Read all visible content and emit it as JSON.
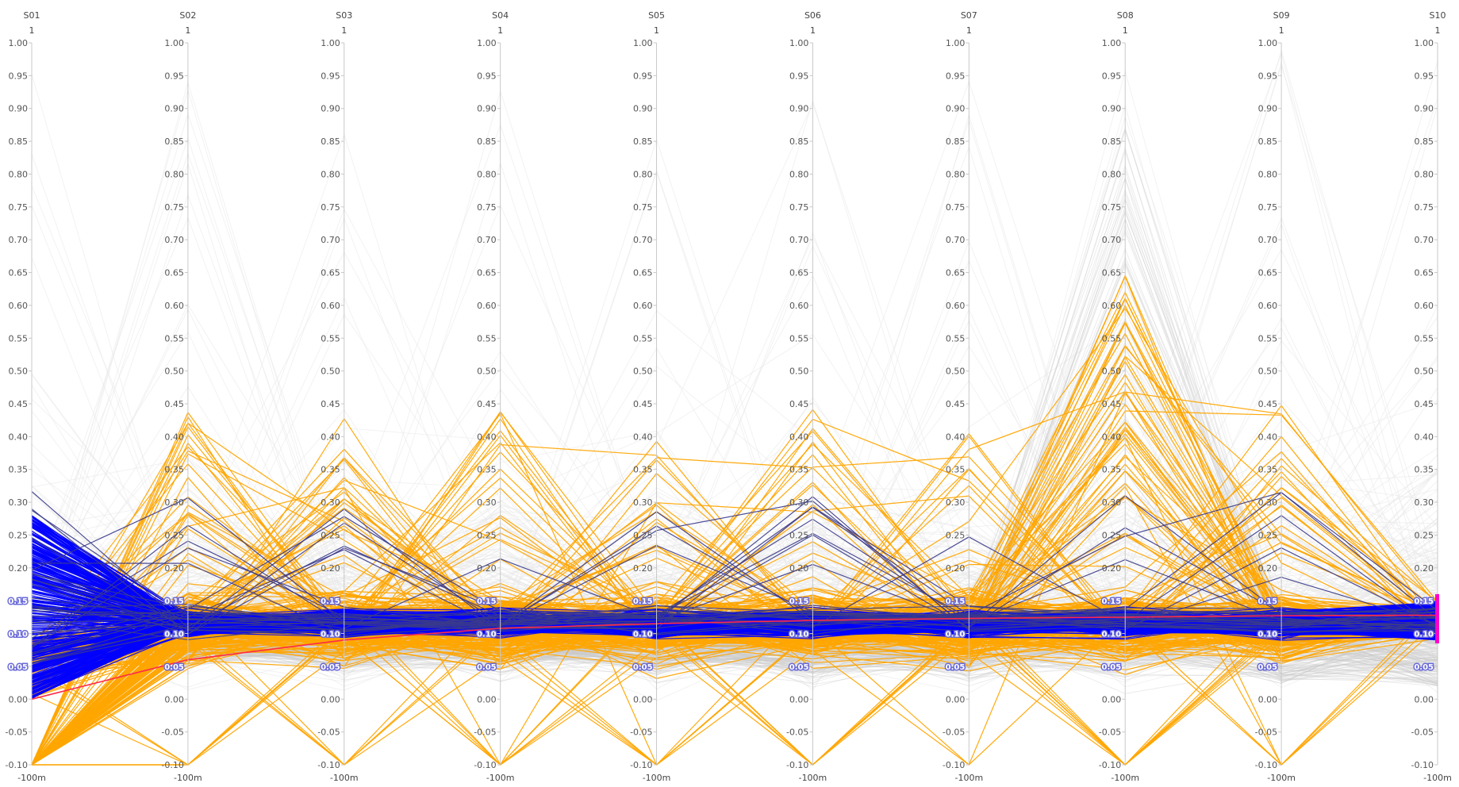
{
  "chart_data": {
    "type": "parallel-coordinates",
    "title": "",
    "dimensions": [
      "S01",
      "S02",
      "S03",
      "S04",
      "S05",
      "S06",
      "S07",
      "S08",
      "S09",
      "S10"
    ],
    "axis_max_label": "1",
    "axis_min_label": "-100m",
    "ylim": [
      -0.1,
      1.0
    ],
    "ticks": [
      "1.00",
      "0.95",
      "0.90",
      "0.85",
      "0.80",
      "0.75",
      "0.70",
      "0.65",
      "0.60",
      "0.55",
      "0.50",
      "0.45",
      "0.40",
      "0.35",
      "0.30",
      "0.25",
      "0.20",
      "0.15",
      "0.10",
      "0.05",
      "0.00",
      "-0.05",
      "-0.10"
    ],
    "tick_values": [
      1.0,
      0.95,
      0.9,
      0.85,
      0.8,
      0.75,
      0.7,
      0.65,
      0.6,
      0.55,
      0.5,
      0.45,
      0.4,
      0.35,
      0.3,
      0.25,
      0.2,
      0.15,
      0.1,
      0.05,
      0.0,
      -0.05,
      -0.1
    ],
    "highlighted_ticks": [
      "0.15",
      "0.10",
      "0.05"
    ],
    "brush": {
      "dimension": "S10",
      "range": [
        0.085,
        0.16
      ],
      "color": "#ff00cc"
    },
    "reference_line": {
      "color": "#ff2a4a",
      "values": [
        0.0,
        0.06,
        0.09,
        0.108,
        0.115,
        0.12,
        0.123,
        0.125,
        0.127,
        0.128
      ]
    },
    "series": [
      {
        "color": "#e8e8e8",
        "role": "context",
        "count": 240
      },
      {
        "color": "#c8c8c8",
        "role": "context-dense",
        "count": 160
      },
      {
        "color": "#ffa500",
        "role": "filtered-out",
        "count": 220
      },
      {
        "color": "#0000ff",
        "role": "selected",
        "count": 320
      },
      {
        "color": "#3a3a8c",
        "role": "selected-dark",
        "count": 30
      }
    ],
    "colors": {
      "axis": "#c8c8c8",
      "context": "#e8e8e8",
      "filtered": "#ffa500",
      "selected": "#0000ff"
    }
  }
}
